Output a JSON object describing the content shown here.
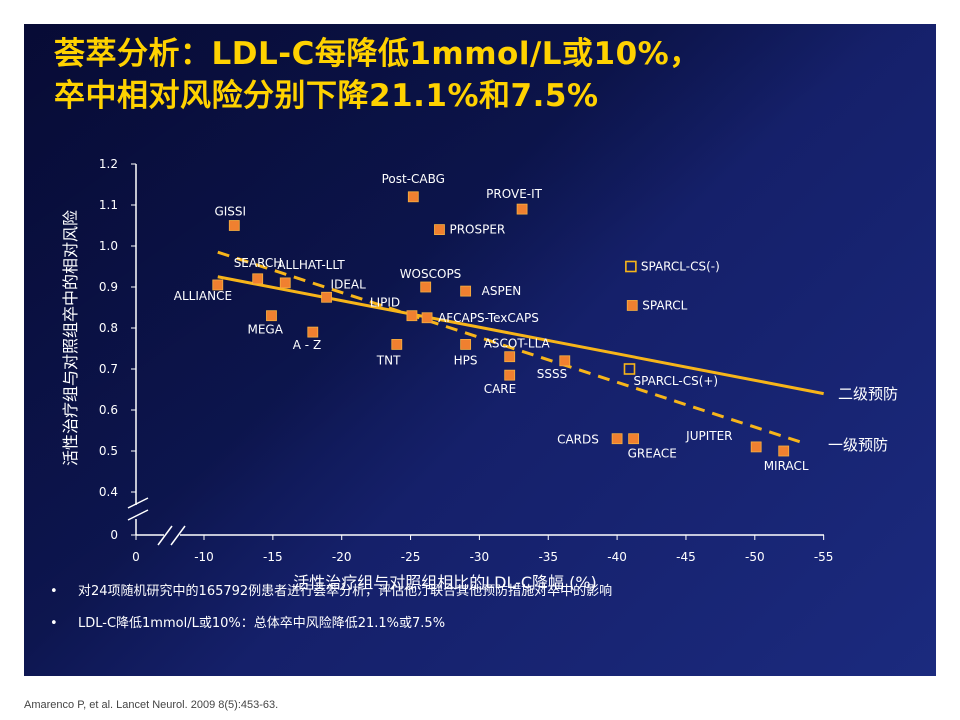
{
  "title": {
    "line1": "荟萃分析：LDL-C每降低1mmol/L或10%，",
    "line2": "卒中相对风险分别下降21.1%和7.5%"
  },
  "bullets": [
    "对24项随机研究中的165792例患者进行荟萃分析，评估他汀联合其他预防措施对卒中的影响",
    "LDL-C降低1mmol/L或10%：总体卒中风险降低21.1%或7.5%"
  ],
  "bullet_marker": "•",
  "citation": "Amarenco P, et al. Lancet Neurol. 2009 8(5):453-63.",
  "colors": {
    "title": "#ffd200",
    "marker_fill": "#f08030",
    "marker_stroke": "#f6b040",
    "line": "#f7b51a",
    "text": "#ffffff"
  },
  "chart_data": {
    "type": "scatter",
    "xlabel": "活性治疗组与对照组相比的LDL-C降幅 (%)",
    "ylabel": "活性治疗组与对照组卒中的相对风险",
    "x_ticks": [
      "0",
      "-10",
      "-15",
      "-20",
      "-25",
      "-30",
      "-35",
      "-40",
      "-45",
      "-50",
      "-55"
    ],
    "y_ticks": [
      "0",
      "0.4",
      "0.5",
      "0.6",
      "0.7",
      "0.8",
      "0.9",
      "1.0",
      "1.1",
      "1.2"
    ],
    "axis_break": true,
    "points": [
      {
        "label": "Post-CABG",
        "x": -25.2,
        "y": 1.12,
        "open": false
      },
      {
        "label": "PROVE-IT",
        "x": -33.1,
        "y": 1.09,
        "open": false
      },
      {
        "label": "GISSI",
        "x": -12.2,
        "y": 1.05,
        "open": false
      },
      {
        "label": "PROSPER",
        "x": -27.1,
        "y": 1.04,
        "open": false
      },
      {
        "label": "SPARCL-CS(-)",
        "x": -41.0,
        "y": 0.95,
        "open": true
      },
      {
        "label": "SEARCH",
        "x": -13.9,
        "y": 0.92,
        "open": false
      },
      {
        "label": "ALLHAT-LLT",
        "x": -15.9,
        "y": 0.91,
        "open": false
      },
      {
        "label": "ALLIANCE",
        "x": -11.0,
        "y": 0.905,
        "open": false
      },
      {
        "label": "WOSCOPS",
        "x": -26.1,
        "y": 0.9,
        "open": false
      },
      {
        "label": "ASPEN",
        "x": -29.0,
        "y": 0.89,
        "open": false
      },
      {
        "label": "IDEAL",
        "x": -18.9,
        "y": 0.875,
        "open": false
      },
      {
        "label": "SPARCL",
        "x": -41.1,
        "y": 0.855,
        "open": false
      },
      {
        "label": "LIPID",
        "x": -25.1,
        "y": 0.83,
        "open": false
      },
      {
        "label": "AFCAPS-TexCAPS",
        "x": -26.2,
        "y": 0.825,
        "open": false
      },
      {
        "label": "MEGA",
        "x": -14.9,
        "y": 0.83,
        "open": false
      },
      {
        "label": "A - Z",
        "x": -17.9,
        "y": 0.79,
        "open": false
      },
      {
        "label": "TNT",
        "x": -24.0,
        "y": 0.76,
        "open": false
      },
      {
        "label": "HPS",
        "x": -29.0,
        "y": 0.76,
        "open": false
      },
      {
        "label": "ASCOT-LLA",
        "x": -32.2,
        "y": 0.73,
        "open": false
      },
      {
        "label": "SSSS",
        "x": -36.2,
        "y": 0.72,
        "open": false
      },
      {
        "label": "CARE",
        "x": -32.2,
        "y": 0.685,
        "open": false
      },
      {
        "label": "SPARCL-CS(+)",
        "x": -40.9,
        "y": 0.7,
        "open": true
      },
      {
        "label": "CARDS",
        "x": -40.0,
        "y": 0.53,
        "open": false
      },
      {
        "label": "GREACE",
        "x": -41.2,
        "y": 0.53,
        "open": false
      },
      {
        "label": "JUPITER",
        "x": -50.1,
        "y": 0.51,
        "open": false
      },
      {
        "label": "MIRACL",
        "x": -52.1,
        "y": 0.5,
        "open": false
      }
    ],
    "lines": [
      {
        "name": "二级预防",
        "style": "solid",
        "x": [
          -11.0,
          -55.0
        ],
        "y": [
          0.925,
          0.64
        ]
      },
      {
        "name": "一级预防",
        "style": "dashed",
        "x": [
          -11.0,
          -53.5
        ],
        "y": [
          0.985,
          0.52
        ]
      }
    ]
  }
}
